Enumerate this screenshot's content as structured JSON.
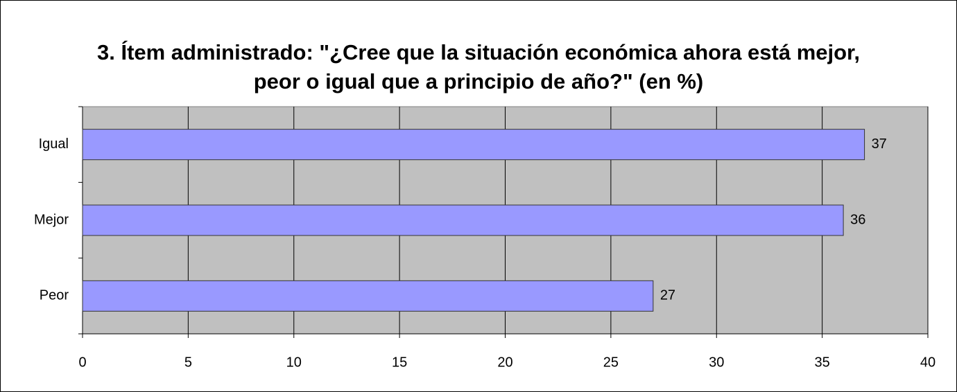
{
  "chart_data": {
    "type": "barh",
    "title": "3. Ítem administrado: \"¿Cree que la situación económica ahora está mejor, peor o igual que a principio de año?\" (en %)",
    "categories": [
      "Igual",
      "Mejor",
      "Peor"
    ],
    "values": [
      37,
      36,
      27
    ],
    "color": "#9999ff",
    "xlim": [
      0,
      40
    ],
    "xticks": [
      0,
      5,
      10,
      15,
      20,
      25,
      30,
      35,
      40
    ],
    "grid": true
  }
}
